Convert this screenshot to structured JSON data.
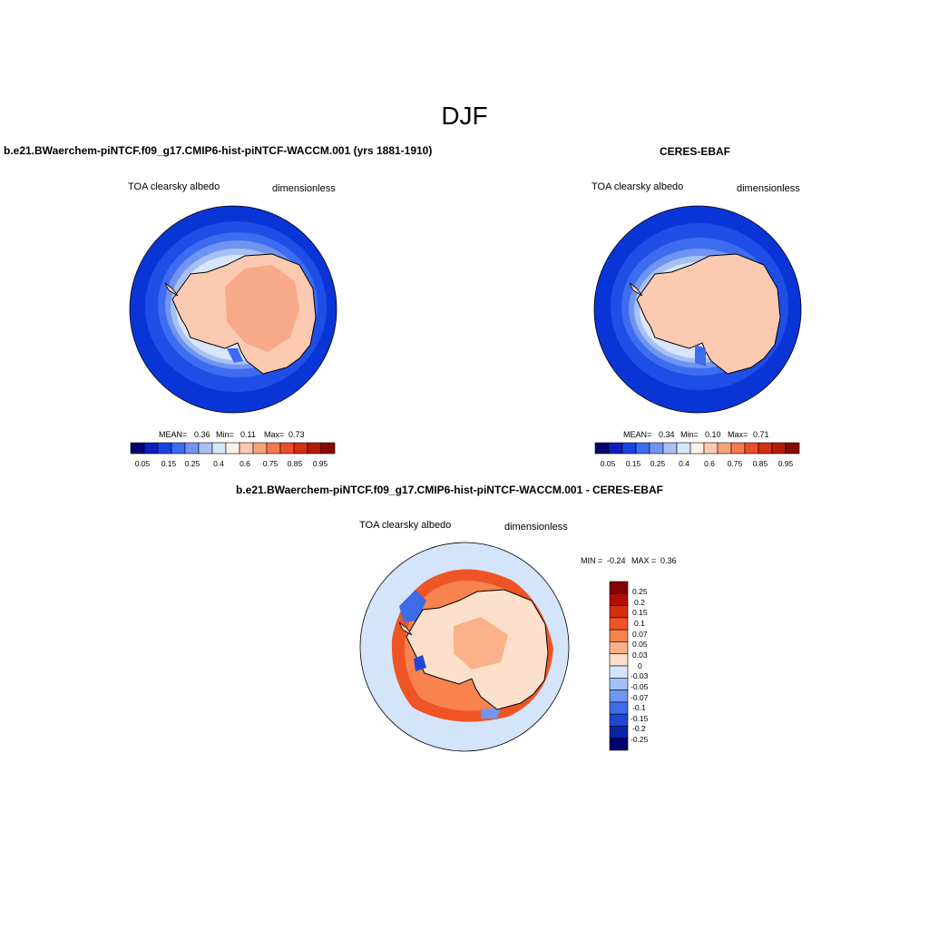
{
  "page": {
    "title": "DJF"
  },
  "panels": {
    "model": {
      "title": "b.e21.BWaerchem-piNTCF.f09_g17.CMIP6-hist-piNTCF-WACCM.001 (yrs 1881-1910)",
      "left_label": "TOA clearsky albedo",
      "right_label": "dimensionless",
      "stats": {
        "mean_label": "MEAN=",
        "mean": "0.36",
        "min_label": "Min=",
        "min": "0.11",
        "max_label": "Max=",
        "max": "0.73"
      }
    },
    "obs": {
      "title": "CERES-EBAF",
      "left_label": "TOA clearsky albedo",
      "right_label": "dimensionless",
      "stats": {
        "mean_label": "MEAN=",
        "mean": "0.34",
        "min_label": "Min=",
        "min": "0.10",
        "max_label": "Max=",
        "max": "0.71"
      }
    },
    "diff": {
      "title": "b.e21.BWaerchem-piNTCF.f09_g17.CMIP6-hist-piNTCF-WACCM.001 - CERES-EBAF",
      "left_label": "TOA clearsky albedo",
      "right_label": "dimensionless",
      "stats": {
        "min_label": "MIN =",
        "min": "-0.24",
        "max_label": "MAX =",
        "max": "0.36"
      }
    }
  },
  "colorbars": {
    "albedo": {
      "colors": [
        "#08006e",
        "#0c1fbd",
        "#1a44e2",
        "#3b6df0",
        "#6f94f2",
        "#a8c1f5",
        "#d8e6fb",
        "#fff0e6",
        "#fccab0",
        "#f9a27c",
        "#f47a4f",
        "#ec4e24",
        "#d42f10",
        "#b01c06",
        "#860b00"
      ],
      "tick_labels": [
        "0.05",
        "0.15",
        "0.25",
        "0.4",
        "0.6",
        "0.75",
        "0.85",
        "0.95"
      ]
    },
    "diff": {
      "colors": [
        "#850000",
        "#b40e02",
        "#d52f0c",
        "#ef5524",
        "#f8834f",
        "#fbb08a",
        "#fde0cc",
        "#d4e5fb",
        "#a3c1f6",
        "#6f96f0",
        "#3f6be6",
        "#1e47d6",
        "#0a22a6",
        "#000070"
      ],
      "tick_labels": [
        "0.25",
        "0.2",
        "0.15",
        "0.1",
        "0.07",
        "0.05",
        "0.03",
        "0",
        "-0.03",
        "-0.05",
        "-0.07",
        "-0.1",
        "-0.15",
        "-0.2",
        "-0.25"
      ]
    }
  }
}
